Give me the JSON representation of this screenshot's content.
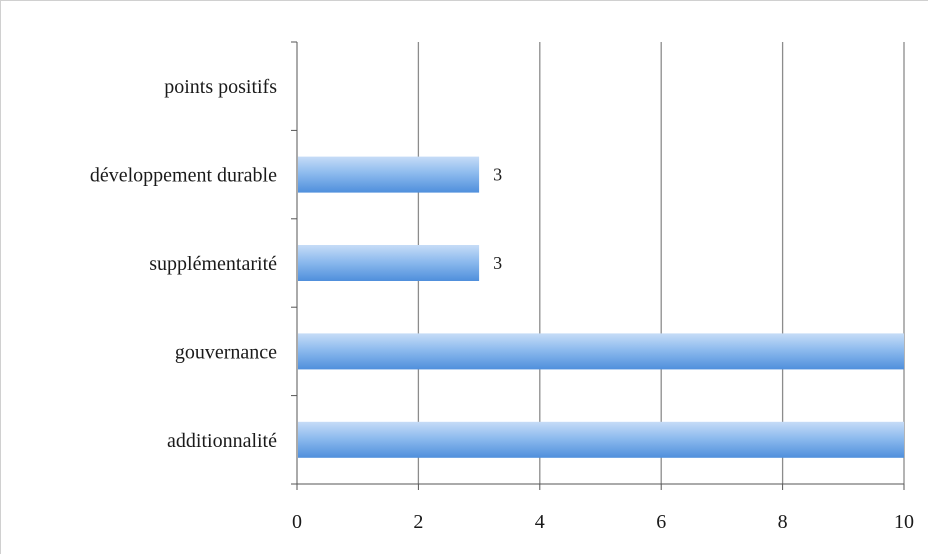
{
  "chart_data": {
    "type": "bar",
    "orientation": "horizontal",
    "categories": [
      "additionnalité",
      "gouvernance",
      "supplémentarité",
      "développement durable",
      "points positifs"
    ],
    "values": [
      10,
      10,
      3,
      3,
      null
    ],
    "data_labels": [
      "",
      "",
      "3",
      "3",
      ""
    ],
    "xlim": [
      0,
      10
    ],
    "xticks": [
      "0",
      "2",
      "4",
      "6",
      "8",
      "10"
    ],
    "grid": "vertical",
    "legend": "none",
    "colors": {
      "bar_light": "#b7d3f5",
      "bar_mid": "#7fb0ea",
      "bar_dark": "#4f8fdc",
      "grid": "#8c8c8c",
      "axis": "#555555"
    }
  }
}
